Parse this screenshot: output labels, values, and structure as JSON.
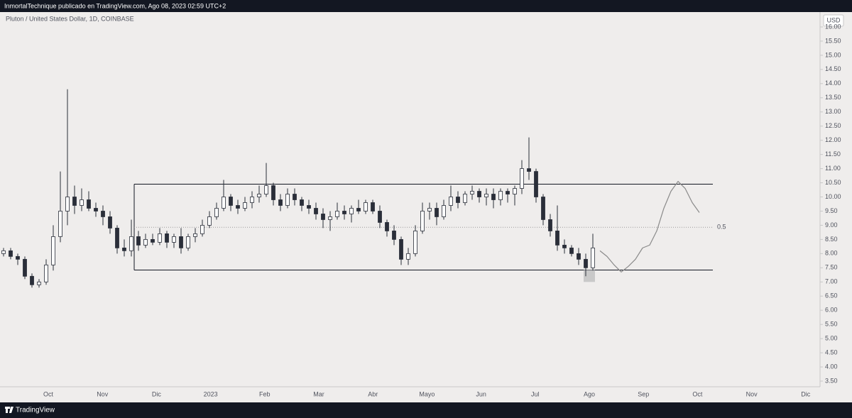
{
  "header": "InmortalTechnique publicado en TradingView.com, Ago 08, 2023 02:59 UTC+2",
  "footer": "TradingView",
  "chart_data": {
    "type": "candlestick",
    "title": "Pluton / United States Dollar, 1D, COINBASE",
    "currency": "USD",
    "x_labels": [
      "Oct",
      "Nov",
      "Dic",
      "2023",
      "Feb",
      "Mar",
      "Abr",
      "Mayo",
      "Jun",
      "Jul",
      "Ago",
      "Sep",
      "Oct",
      "Nov",
      "Dic"
    ],
    "open": [
      8.0,
      8.1,
      7.9,
      7.8,
      7.2,
      6.9,
      7.0,
      7.6,
      8.6,
      9.5,
      10.0,
      9.7,
      9.9,
      9.6,
      9.5,
      9.3,
      8.9,
      8.2,
      8.1,
      8.6,
      8.3,
      8.5,
      8.4,
      8.7,
      8.4,
      8.6,
      8.2,
      8.6,
      8.7,
      9.0,
      9.3,
      9.6,
      10.0,
      9.7,
      9.6,
      9.8,
      10.0,
      10.1,
      10.4,
      9.9,
      9.7,
      10.1,
      9.9,
      9.7,
      9.6,
      9.4,
      9.2,
      9.3,
      9.5,
      9.4,
      9.6,
      9.5,
      9.8,
      9.5,
      9.1,
      8.8,
      8.5,
      7.8,
      8.0,
      8.8,
      9.5,
      9.6,
      9.3,
      9.7,
      10.0,
      9.8,
      10.1,
      10.2,
      10.0,
      10.1,
      9.9,
      10.2,
      10.1,
      10.3,
      11.0,
      10.9,
      10.0,
      9.2,
      8.8,
      8.3,
      8.2,
      8.0,
      7.8,
      7.5
    ],
    "high": [
      8.2,
      8.2,
      8.0,
      7.9,
      7.3,
      7.1,
      7.8,
      9.0,
      10.9,
      13.8,
      10.4,
      10.3,
      10.2,
      9.8,
      9.7,
      9.5,
      9.0,
      8.5,
      9.2,
      8.8,
      8.7,
      8.7,
      8.9,
      8.8,
      8.7,
      8.9,
      8.7,
      8.9,
      9.2,
      9.5,
      9.8,
      10.6,
      10.1,
      9.9,
      10.0,
      10.2,
      10.4,
      11.2,
      10.5,
      10.1,
      10.3,
      10.3,
      10.0,
      9.9,
      9.8,
      9.6,
      9.5,
      9.8,
      9.7,
      9.7,
      9.9,
      9.9,
      9.9,
      9.7,
      9.2,
      9.0,
      8.6,
      8.2,
      9.0,
      9.8,
      9.8,
      9.8,
      9.9,
      10.4,
      10.2,
      10.2,
      10.4,
      10.3,
      10.3,
      10.3,
      10.3,
      10.3,
      10.4,
      11.3,
      12.1,
      11.0,
      10.1,
      9.4,
      9.7,
      8.5,
      8.3,
      8.2,
      8.0,
      8.7
    ],
    "low": [
      7.9,
      7.8,
      7.6,
      7.1,
      6.8,
      6.8,
      6.9,
      7.4,
      8.4,
      9.0,
      9.4,
      9.5,
      9.5,
      9.3,
      9.0,
      8.7,
      8.0,
      7.9,
      7.9,
      8.1,
      8.2,
      8.3,
      8.3,
      8.2,
      8.2,
      8.0,
      8.1,
      8.4,
      8.6,
      8.9,
      9.2,
      9.5,
      9.5,
      9.4,
      9.5,
      9.6,
      9.8,
      10.0,
      9.7,
      9.5,
      9.6,
      9.7,
      9.5,
      9.4,
      9.2,
      8.9,
      8.8,
      9.2,
      9.2,
      9.1,
      9.4,
      9.4,
      9.4,
      8.9,
      8.6,
      8.3,
      7.6,
      7.6,
      7.9,
      8.7,
      9.2,
      9.0,
      9.2,
      9.5,
      9.6,
      9.7,
      9.9,
      9.8,
      9.7,
      9.6,
      9.7,
      9.8,
      9.7,
      10.1,
      10.6,
      9.8,
      9.0,
      8.6,
      8.1,
      8.0,
      7.9,
      7.6,
      7.2,
      7.4
    ],
    "close": [
      8.1,
      7.9,
      7.8,
      7.2,
      6.9,
      7.0,
      7.6,
      8.6,
      9.5,
      10.0,
      9.7,
      9.9,
      9.6,
      9.5,
      9.3,
      8.9,
      8.2,
      8.1,
      8.6,
      8.3,
      8.5,
      8.4,
      8.7,
      8.4,
      8.6,
      8.2,
      8.6,
      8.7,
      9.0,
      9.3,
      9.6,
      10.0,
      9.7,
      9.6,
      9.8,
      10.0,
      10.1,
      10.4,
      9.9,
      9.7,
      10.1,
      9.9,
      9.7,
      9.6,
      9.4,
      9.2,
      9.3,
      9.5,
      9.4,
      9.6,
      9.5,
      9.8,
      9.5,
      9.1,
      8.8,
      8.5,
      7.8,
      8.0,
      8.8,
      9.5,
      9.6,
      9.3,
      9.7,
      10.0,
      9.8,
      10.1,
      10.2,
      10.0,
      10.1,
      9.9,
      10.2,
      10.1,
      10.3,
      11.0,
      10.9,
      10.0,
      9.2,
      8.8,
      8.3,
      8.2,
      8.0,
      7.8,
      7.5,
      8.2
    ],
    "up_color": "#ffffff",
    "down_color": "#2a2e39",
    "wick_color": "#2a2e39",
    "range_box": {
      "top": 10.45,
      "bottom": 7.42
    },
    "midline": {
      "value": 8.93,
      "label": "0.5"
    },
    "highlight": {
      "top": 7.42,
      "bottom": 7.0
    },
    "projection": [
      8.1,
      7.9,
      7.6,
      7.35,
      7.55,
      7.8,
      8.2,
      8.3,
      8.8,
      9.6,
      10.2,
      10.55,
      10.3,
      9.8,
      9.45
    ],
    "ylim": [
      3.3,
      16.5
    ],
    "yticks": [
      {
        "value": 16,
        "label": "16.00"
      },
      {
        "value": 15.5,
        "label": "15.50"
      },
      {
        "value": 15,
        "label": "15.00"
      },
      {
        "value": 14.5,
        "label": "14.50"
      },
      {
        "value": 14,
        "label": "14.00"
      },
      {
        "value": 13.5,
        "label": "13.50"
      },
      {
        "value": 13,
        "label": "13.00"
      },
      {
        "value": 12.5,
        "label": "12.50"
      },
      {
        "value": 12,
        "label": "12.00"
      },
      {
        "value": 11.5,
        "label": "11.50"
      },
      {
        "value": 11,
        "label": "11.00"
      },
      {
        "value": 10.5,
        "label": "10.50"
      },
      {
        "value": 10,
        "label": "10.00"
      },
      {
        "value": 9.5,
        "label": "9.50"
      },
      {
        "value": 9,
        "label": "9.00"
      },
      {
        "value": 8.5,
        "label": "8.50"
      },
      {
        "value": 8,
        "label": "8.00"
      },
      {
        "value": 7.5,
        "label": "7.50"
      },
      {
        "value": 7,
        "label": "7.00"
      },
      {
        "value": 6.5,
        "label": "6.50"
      },
      {
        "value": 6,
        "label": "6.00"
      },
      {
        "value": 5.5,
        "label": "5.50"
      },
      {
        "value": 5,
        "label": "5.00"
      },
      {
        "value": 4.5,
        "label": "4.50"
      },
      {
        "value": 4,
        "label": "4.00"
      },
      {
        "value": 3.5,
        "label": "3.50"
      }
    ]
  }
}
